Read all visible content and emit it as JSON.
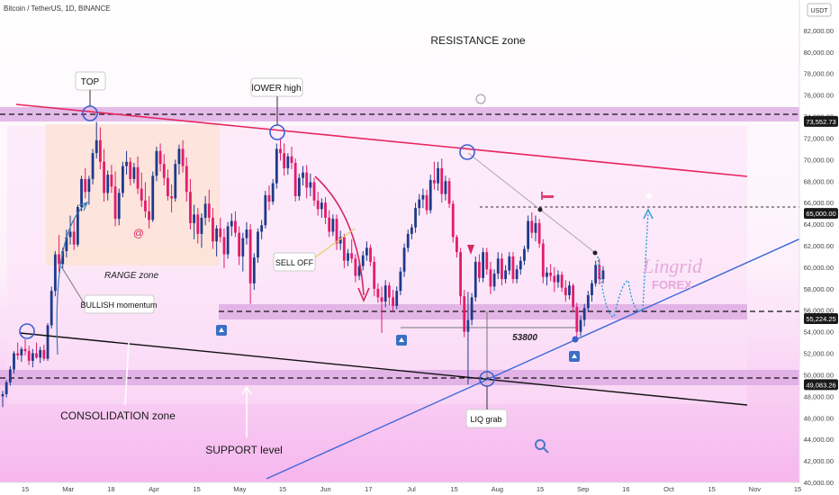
{
  "header": {
    "symbol": "Bitcoin / TetherUS, 1D, BINANCE"
  },
  "chart_data": {
    "type": "candlestick",
    "title": "",
    "currency": "USDT",
    "y_ticks": [
      "82,000.00",
      "80,000.00",
      "78,000.00",
      "76,000.00",
      "74,000.00",
      "72,000.00",
      "70,000.00",
      "68,000.00",
      "66,000.00",
      "64,000.00",
      "62,000.00",
      "60,000.00",
      "58,000.00",
      "56,000.00",
      "54,000.00",
      "52,000.00",
      "50,000.00",
      "48,000.00",
      "46,000.00",
      "44,000.00",
      "42,000.00",
      "40,000.00"
    ],
    "x_ticks": [
      "15",
      "Mar",
      "18",
      "Apr",
      "15",
      "May",
      "15",
      "Jun",
      "17",
      "Jul",
      "15",
      "Aug",
      "15",
      "Sep",
      "16",
      "Oct",
      "15",
      "Nov",
      "15"
    ],
    "ylim": [
      40000,
      84000
    ],
    "price_tags": [
      "73,552.73",
      "65,000.00",
      "55,224.25",
      "49,083.26"
    ],
    "annotations": {
      "resistance": "RESISTANCE zone",
      "top": "TOP",
      "lower_high": "lOWER high",
      "range": "RANGE zone",
      "bullish": "BULLISH momentum",
      "selloff": "SELL OFF",
      "consolidation": "CONSOLIDATION zone",
      "support": "SUPPORT level",
      "liq": "LIQ grab",
      "level": "53800"
    },
    "series": [
      {
        "values": [
          [
            48000,
            48500,
            47000,
            48200
          ],
          [
            48200,
            49500,
            47900,
            49300
          ],
          [
            49300,
            50800,
            49000,
            50500
          ],
          [
            50500,
            52200,
            50100,
            52000
          ],
          [
            52000,
            53000,
            51400,
            51800
          ],
          [
            51800,
            52600,
            51200,
            52400
          ],
          [
            52400,
            53300,
            51800,
            52200
          ],
          [
            52200,
            52700,
            50900,
            51300
          ],
          [
            51300,
            52400,
            50700,
            52000
          ],
          [
            52000,
            53000,
            51500,
            51600
          ],
          [
            51600,
            52600,
            51100,
            52300
          ],
          [
            52300,
            52800,
            51300,
            51500
          ],
          [
            51500,
            54800,
            51300,
            54600
          ],
          [
            54600,
            58200,
            54300,
            57800
          ],
          [
            57800,
            61500,
            57300,
            61200
          ],
          [
            61200,
            63000,
            59500,
            60300
          ],
          [
            60300,
            61800,
            59800,
            61500
          ],
          [
            61500,
            63500,
            60900,
            62800
          ],
          [
            62800,
            64800,
            62100,
            63300
          ],
          [
            63300,
            64500,
            61600,
            62100
          ],
          [
            62100,
            65800,
            61900,
            65600
          ],
          [
            65600,
            68500,
            65200,
            68200
          ],
          [
            68200,
            69200,
            66400,
            67000
          ],
          [
            67000,
            68500,
            65800,
            68200
          ],
          [
            68200,
            71000,
            67700,
            70600
          ],
          [
            70600,
            73500,
            70100,
            71800
          ],
          [
            71800,
            73000,
            69100,
            69800
          ],
          [
            69800,
            71000,
            66100,
            66900
          ],
          [
            66900,
            69000,
            66200,
            68600
          ],
          [
            68600,
            69500,
            66900,
            67500
          ],
          [
            67500,
            68900,
            63800,
            64500
          ],
          [
            64500,
            67300,
            63900,
            66900
          ],
          [
            66900,
            69800,
            66500,
            69400
          ],
          [
            69400,
            70800,
            68600,
            69800
          ],
          [
            69800,
            70200,
            67600,
            68200
          ],
          [
            68200,
            69700,
            67800,
            69300
          ],
          [
            69300,
            70300,
            66800,
            67300
          ],
          [
            67300,
            68800,
            65600,
            66200
          ],
          [
            66200,
            67900,
            64600,
            65200
          ],
          [
            65200,
            66600,
            63600,
            64400
          ],
          [
            64400,
            68900,
            64200,
            68500
          ],
          [
            68500,
            71200,
            68000,
            70800
          ],
          [
            70800,
            71500,
            68900,
            69600
          ],
          [
            69600,
            70500,
            67600,
            68300
          ],
          [
            68300,
            69100,
            66200,
            66600
          ],
          [
            66600,
            67700,
            65100,
            66400
          ],
          [
            66400,
            70000,
            66100,
            69600
          ],
          [
            69600,
            71400,
            68600,
            71000
          ],
          [
            71000,
            71800,
            68800,
            69400
          ],
          [
            69400,
            70200,
            66100,
            67000
          ],
          [
            67000,
            68200,
            63500,
            64100
          ],
          [
            64100,
            65800,
            62600,
            64900
          ],
          [
            64900,
            65500,
            62200,
            63100
          ],
          [
            63100,
            65000,
            61800,
            64600
          ],
          [
            64600,
            66600,
            63900,
            65900
          ],
          [
            65900,
            67200,
            64200,
            64600
          ],
          [
            64600,
            65500,
            61700,
            62400
          ],
          [
            62400,
            63900,
            61000,
            63600
          ],
          [
            63600,
            64600,
            62300,
            62800
          ],
          [
            62800,
            63600,
            59900,
            61200
          ],
          [
            61200,
            64200,
            60800,
            63800
          ],
          [
            63800,
            65000,
            62900,
            64300
          ],
          [
            64300,
            65200,
            62800,
            63200
          ],
          [
            63200,
            63800,
            60200,
            61000
          ],
          [
            61000,
            63200,
            59600,
            62700
          ],
          [
            62700,
            64200,
            62100,
            63500
          ],
          [
            63500,
            64000,
            56600,
            58500
          ],
          [
            58500,
            61300,
            57900,
            60900
          ],
          [
            60900,
            63600,
            60400,
            63300
          ],
          [
            63300,
            64400,
            62600,
            63900
          ],
          [
            63900,
            67100,
            63600,
            66700
          ],
          [
            66700,
            67600,
            65300,
            66100
          ],
          [
            66100,
            68200,
            65800,
            67800
          ],
          [
            67800,
            71500,
            67300,
            71000
          ],
          [
            71000,
            72000,
            69900,
            70600
          ],
          [
            70600,
            71500,
            68500,
            69200
          ],
          [
            69200,
            70600,
            68600,
            70300
          ],
          [
            70300,
            71200,
            69100,
            69700
          ],
          [
            69700,
            70100,
            66100,
            66600
          ],
          [
            66600,
            68700,
            66200,
            68300
          ],
          [
            68300,
            69400,
            67600,
            68800
          ],
          [
            68800,
            69500,
            66400,
            67400
          ],
          [
            67400,
            68700,
            66600,
            67900
          ],
          [
            67900,
            68300,
            65700,
            66200
          ],
          [
            66200,
            67000,
            64800,
            65400
          ],
          [
            65400,
            66400,
            64600,
            66000
          ],
          [
            66000,
            66500,
            64000,
            64600
          ],
          [
            64600,
            65300,
            62800,
            63300
          ],
          [
            63300,
            64900,
            62900,
            64500
          ],
          [
            64500,
            64900,
            61600,
            62200
          ],
          [
            62200,
            63400,
            61600,
            62800
          ],
          [
            62800,
            63100,
            59900,
            60600
          ],
          [
            60600,
            61700,
            60100,
            61300
          ],
          [
            61300,
            62600,
            60400,
            60800
          ],
          [
            60800,
            61200,
            58600,
            59200
          ],
          [
            59200,
            60500,
            58800,
            60100
          ],
          [
            60100,
            61500,
            59700,
            61100
          ],
          [
            61100,
            62400,
            60600,
            61800
          ],
          [
            61800,
            62100,
            60100,
            60500
          ],
          [
            60500,
            61000,
            57300,
            58000
          ],
          [
            58000,
            58500,
            56700,
            57200
          ],
          [
            57200,
            58200,
            53900,
            56800
          ],
          [
            56800,
            58800,
            56300,
            58300
          ],
          [
            58300,
            58600,
            56500,
            57200
          ],
          [
            57200,
            57900,
            55900,
            56400
          ],
          [
            56400,
            58200,
            56100,
            57800
          ],
          [
            57800,
            60000,
            57400,
            59600
          ],
          [
            59600,
            62200,
            59100,
            61800
          ],
          [
            61800,
            63500,
            61400,
            63100
          ],
          [
            63100,
            64000,
            62600,
            63700
          ],
          [
            63700,
            66000,
            63200,
            65500
          ],
          [
            65500,
            66800,
            64800,
            66300
          ],
          [
            66300,
            67300,
            65500,
            66700
          ],
          [
            66700,
            67200,
            64900,
            65300
          ],
          [
            65300,
            68600,
            65000,
            68100
          ],
          [
            68100,
            69800,
            67200,
            67800
          ],
          [
            67800,
            69800,
            67100,
            69200
          ],
          [
            69200,
            70100,
            66000,
            66800
          ],
          [
            66800,
            68500,
            66200,
            68000
          ],
          [
            68000,
            68300,
            65500,
            65900
          ],
          [
            65900,
            66200,
            62300,
            62800
          ],
          [
            62800,
            63000,
            60900,
            61400
          ],
          [
            61400,
            61800,
            56500,
            57300
          ],
          [
            57300,
            57900,
            53500,
            54000
          ],
          [
            54000,
            57700,
            49100,
            55100
          ],
          [
            55100,
            57600,
            54600,
            57200
          ],
          [
            57200,
            61000,
            56800,
            60500
          ],
          [
            60500,
            61200,
            58600,
            59000
          ],
          [
            59000,
            61800,
            58600,
            61400
          ],
          [
            61400,
            61800,
            59300,
            59800
          ],
          [
            59800,
            60500,
            57500,
            58200
          ],
          [
            58200,
            59800,
            57800,
            59400
          ],
          [
            59400,
            61400,
            58900,
            60800
          ],
          [
            60800,
            61300,
            58300,
            58900
          ],
          [
            58900,
            60200,
            58500,
            59700
          ],
          [
            59700,
            61400,
            59300,
            61000
          ],
          [
            61000,
            61400,
            58500,
            58900
          ],
          [
            58900,
            60200,
            58500,
            59800
          ],
          [
            59800,
            61000,
            59300,
            60600
          ],
          [
            60600,
            62000,
            60200,
            61700
          ],
          [
            61700,
            64800,
            61400,
            64300
          ],
          [
            64300,
            65100,
            62700,
            63200
          ],
          [
            63200,
            64800,
            62400,
            64100
          ],
          [
            64100,
            64500,
            61800,
            62200
          ],
          [
            62200,
            62600,
            58500,
            59100
          ],
          [
            59100,
            60000,
            58300,
            59500
          ],
          [
            59500,
            60300,
            58700,
            59200
          ],
          [
            59200,
            60000,
            57700,
            58600
          ],
          [
            58600,
            59700,
            58100,
            59300
          ],
          [
            59300,
            59600,
            57700,
            58100
          ],
          [
            58100,
            58800,
            56800,
            57400
          ],
          [
            57400,
            58700,
            57000,
            58300
          ],
          [
            58300,
            58500,
            55800,
            56300
          ],
          [
            56300,
            56700,
            53200,
            54000
          ],
          [
            54000,
            55500,
            53600,
            55100
          ],
          [
            55100,
            56600,
            54500,
            56200
          ],
          [
            56200,
            57800,
            55900,
            57400
          ],
          [
            57400,
            58800,
            56800,
            58500
          ],
          [
            58500,
            60600,
            58200,
            60200
          ],
          [
            60200,
            60800,
            58400,
            58900
          ],
          [
            58900,
            60100,
            58500,
            59700
          ]
        ]
      }
    ]
  }
}
